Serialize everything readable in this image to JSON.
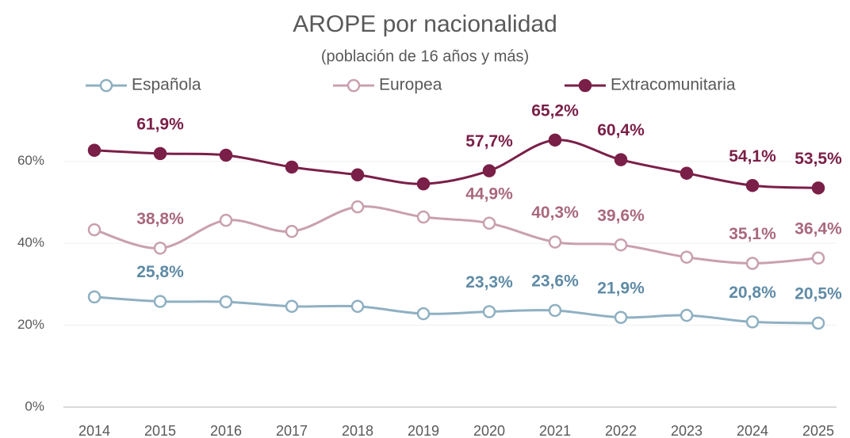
{
  "chart_data": {
    "type": "line",
    "title": "AROPE por nacionalidad",
    "subtitle": "(población de 16 años y más)",
    "categories": [
      "2014",
      "2015",
      "2016",
      "2017",
      "2018",
      "2019",
      "2020",
      "2021",
      "2022",
      "2023",
      "2024",
      "2025"
    ],
    "series": [
      {
        "name": "Española",
        "color": "#8fb0c2",
        "label_color": "#5f8ba6",
        "marker_fill": "#ffffff",
        "values": [
          26.9,
          25.8,
          25.7,
          24.6,
          24.6,
          22.8,
          23.3,
          23.6,
          21.9,
          22.4,
          20.8,
          20.5
        ],
        "value_labels": [
          null,
          "25,8%",
          null,
          null,
          null,
          null,
          "23,3%",
          "23,6%",
          "21,9%",
          null,
          "20,8%",
          "20,5%"
        ]
      },
      {
        "name": "Europea",
        "color": "#c9a0b0",
        "label_color": "#a9687f",
        "marker_fill": "#ffffff",
        "values": [
          43.3,
          38.8,
          45.6,
          42.9,
          48.9,
          46.4,
          44.9,
          40.3,
          39.6,
          36.6,
          35.1,
          36.4
        ],
        "value_labels": [
          null,
          "38,8%",
          null,
          null,
          null,
          null,
          "44,9%",
          "40,3%",
          "39,6%",
          null,
          "35,1%",
          "36,4%"
        ]
      },
      {
        "name": "Extracomunitaria",
        "color": "#7a1f48",
        "label_color": "#7a1f48",
        "marker_fill": "#7a1f48",
        "values": [
          62.7,
          61.9,
          61.5,
          58.6,
          56.7,
          54.5,
          57.7,
          65.2,
          60.4,
          57.1,
          54.1,
          53.5
        ],
        "value_labels": [
          null,
          "61,9%",
          null,
          null,
          null,
          null,
          "57,7%",
          "65,2%",
          "60,4%",
          null,
          "54,1%",
          "53,5%"
        ]
      }
    ],
    "ylim": [
      0,
      70
    ],
    "yticks": [
      {
        "value": 0,
        "label": "0%"
      },
      {
        "value": 20,
        "label": "20%"
      },
      {
        "value": 40,
        "label": "40%"
      },
      {
        "value": 60,
        "label": "60%"
      }
    ],
    "grid": true,
    "legend": "top"
  }
}
